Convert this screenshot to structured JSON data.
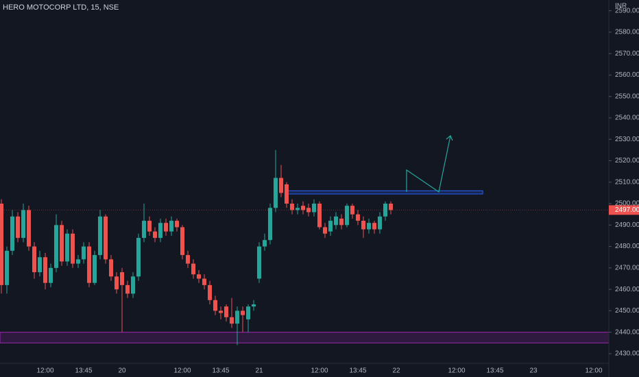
{
  "chart_data": {
    "type": "candlestick",
    "title": "HERO MOTOCORP LTD, 15, NSE",
    "currency": "INR",
    "categories": [
      null,
      null,
      null,
      null,
      null,
      null,
      null,
      null,
      "12:00",
      null,
      null,
      null,
      null,
      null,
      null,
      "13:45",
      null,
      null,
      null,
      null,
      null,
      null,
      "20",
      null,
      null,
      null,
      null,
      null,
      null,
      null,
      null,
      null,
      null,
      "12:00",
      null,
      null,
      null,
      null,
      null,
      null,
      "13:45",
      null,
      null,
      null,
      null,
      null,
      null,
      "21",
      null,
      null,
      null,
      null,
      null,
      null,
      null,
      null,
      null,
      null,
      "12:00",
      null,
      null,
      null,
      null,
      null,
      null,
      "13:45",
      null,
      null,
      null,
      null,
      null,
      null,
      "22",
      null,
      null,
      null,
      null,
      null,
      null,
      null,
      null,
      null,
      null,
      "12:00",
      null,
      null,
      null,
      null,
      null,
      null,
      "13:45",
      null,
      null,
      null,
      null,
      null,
      null,
      "23",
      null,
      null,
      null,
      null,
      null,
      null,
      null,
      null,
      null,
      null,
      "12:00",
      null,
      null
    ],
    "open": [
      2500,
      2462,
      2478,
      2494,
      2484,
      2497,
      2480,
      2468,
      2475,
      2463,
      2470,
      2490,
      2473,
      2486,
      2472,
      2474,
      2480,
      2463,
      2476,
      2494,
      2474,
      2466,
      2468,
      2462,
      2458,
      2466,
      2484,
      2492,
      2487,
      2484,
      2491,
      2487,
      2492,
      2489,
      2476,
      2472,
      2467,
      2465,
      2462,
      2455,
      2450,
      2452,
      2447,
      2444,
      2450,
      2446,
      2452,
      2465,
      2480,
      2483,
      2498,
      2512,
      2509,
      2500,
      2497,
      2499,
      2498,
      2496,
      2500,
      2489,
      2487,
      2490,
      2493,
      2490,
      2499,
      2495,
      2492,
      2488,
      2491,
      2488,
      2494,
      2500,
      null,
      null,
      null,
      null,
      null,
      null,
      null,
      null,
      null,
      null,
      null,
      null,
      null,
      null,
      null,
      null,
      null,
      null,
      null,
      null,
      null,
      null,
      null,
      null,
      null,
      null,
      null,
      null,
      null,
      null,
      null,
      null,
      null,
      null,
      null,
      null,
      null,
      null,
      null
    ],
    "high": [
      2502,
      2480,
      2497,
      2496,
      2500,
      2499,
      2482,
      2478,
      2477,
      2472,
      2495,
      2492,
      2488,
      2488,
      2476,
      2482,
      2482,
      2478,
      2497,
      2495,
      2476,
      2468,
      2470,
      2464,
      2468,
      2486,
      2500,
      2494,
      2489,
      2493,
      2493,
      2494,
      2493,
      2490,
      2478,
      2474,
      2469,
      2467,
      2464,
      2457,
      2452,
      2453,
      2456,
      2452,
      2452,
      2453,
      2455,
      2482,
      2486,
      2500,
      2525,
      2518,
      2510,
      2502,
      2500,
      2501,
      2500,
      2502,
      2501,
      2491,
      2494,
      2496,
      2495,
      2500,
      2500,
      2497,
      2494,
      2493,
      2492,
      2496,
      2501,
      2501,
      null,
      null,
      null,
      null,
      null,
      null,
      null,
      null,
      null,
      null,
      null,
      null,
      null,
      null,
      null,
      null,
      null,
      null,
      null,
      null,
      null,
      null,
      null,
      null,
      null,
      null,
      null,
      null,
      null,
      null,
      null,
      null,
      null,
      null,
      null,
      null,
      null,
      null,
      null
    ],
    "low": [
      2458,
      2458,
      2476,
      2482,
      2482,
      2478,
      2465,
      2466,
      2460,
      2461,
      2468,
      2471,
      2471,
      2470,
      2470,
      2472,
      2461,
      2462,
      2474,
      2472,
      2464,
      2458,
      2440,
      2456,
      2456,
      2464,
      2482,
      2485,
      2482,
      2482,
      2485,
      2485,
      2487,
      2474,
      2470,
      2465,
      2463,
      2460,
      2453,
      2448,
      2446,
      2445,
      2442,
      2434,
      2440,
      2440,
      2450,
      2463,
      2478,
      2481,
      2496,
      2503,
      2498,
      2495,
      2495,
      2495,
      2494,
      2494,
      2488,
      2484,
      2485,
      2488,
      2488,
      2489,
      2493,
      2490,
      2484,
      2486,
      2486,
      2486,
      2492,
      2495,
      null,
      null,
      null,
      null,
      null,
      null,
      null,
      null,
      null,
      null,
      null,
      null,
      null,
      null,
      null,
      null,
      null,
      null,
      null,
      null,
      null,
      null,
      null,
      null,
      null,
      null,
      null,
      null,
      null,
      null,
      null,
      null,
      null,
      null,
      null,
      null,
      null,
      null,
      null
    ],
    "close": [
      2462,
      2478,
      2494,
      2484,
      2497,
      2480,
      2468,
      2475,
      2463,
      2470,
      2490,
      2473,
      2486,
      2472,
      2474,
      2480,
      2463,
      2476,
      2494,
      2474,
      2466,
      2460,
      2462,
      2458,
      2466,
      2484,
      2492,
      2487,
      2484,
      2491,
      2487,
      2492,
      2489,
      2476,
      2472,
      2467,
      2465,
      2462,
      2455,
      2450,
      2449,
      2447,
      2444,
      2450,
      2448,
      2452,
      2453,
      2480,
      2483,
      2498,
      2512,
      2505,
      2500,
      2497,
      2498,
      2497,
      2496,
      2500,
      2489,
      2486,
      2492,
      2494,
      2490,
      2499,
      2495,
      2492,
      2488,
      2491,
      2488,
      2494,
      2500,
      2497,
      null,
      null,
      null,
      null,
      null,
      null,
      null,
      null,
      null,
      null,
      null,
      null,
      null,
      null,
      null,
      null,
      null,
      null,
      null,
      null,
      null,
      null,
      null,
      null,
      null,
      null,
      null,
      null,
      null,
      null,
      null,
      null,
      null,
      null,
      null,
      null,
      null,
      null,
      null
    ],
    "up_color": "#26a69a",
    "down_color": "#ef5350",
    "last_price": {
      "value": 2497,
      "label": "2497.00"
    },
    "zones": [
      {
        "low": 2435,
        "high": 2440,
        "color": "#9c27b0"
      },
      {
        "low": 2504.5,
        "high": 2506,
        "color": "#2962ff"
      }
    ],
    "ylim": [
      2425.5,
      2595
    ],
    "yticks": [
      {
        "value": 2430,
        "label": "2430.00"
      },
      {
        "value": 2440,
        "label": "2440.00"
      },
      {
        "value": 2450,
        "label": "2450.00"
      },
      {
        "value": 2460,
        "label": "2460.00"
      },
      {
        "value": 2470,
        "label": "2470.00"
      },
      {
        "value": 2480,
        "label": "2480.00"
      },
      {
        "value": 2490,
        "label": "2490.00"
      },
      {
        "value": 2500,
        "label": "2500.00"
      },
      {
        "value": 2510,
        "label": "2510.00"
      },
      {
        "value": 2520,
        "label": "2520.00"
      },
      {
        "value": 2530,
        "label": "2530.00"
      },
      {
        "value": 2540,
        "label": "2540.00"
      },
      {
        "value": 2550,
        "label": "2550.00"
      },
      {
        "value": 2560,
        "label": "2560.00"
      },
      {
        "value": 2570,
        "label": "2570.00"
      },
      {
        "value": 2580,
        "label": "2580.00"
      },
      {
        "value": 2590,
        "label": "2590.00"
      }
    ]
  }
}
